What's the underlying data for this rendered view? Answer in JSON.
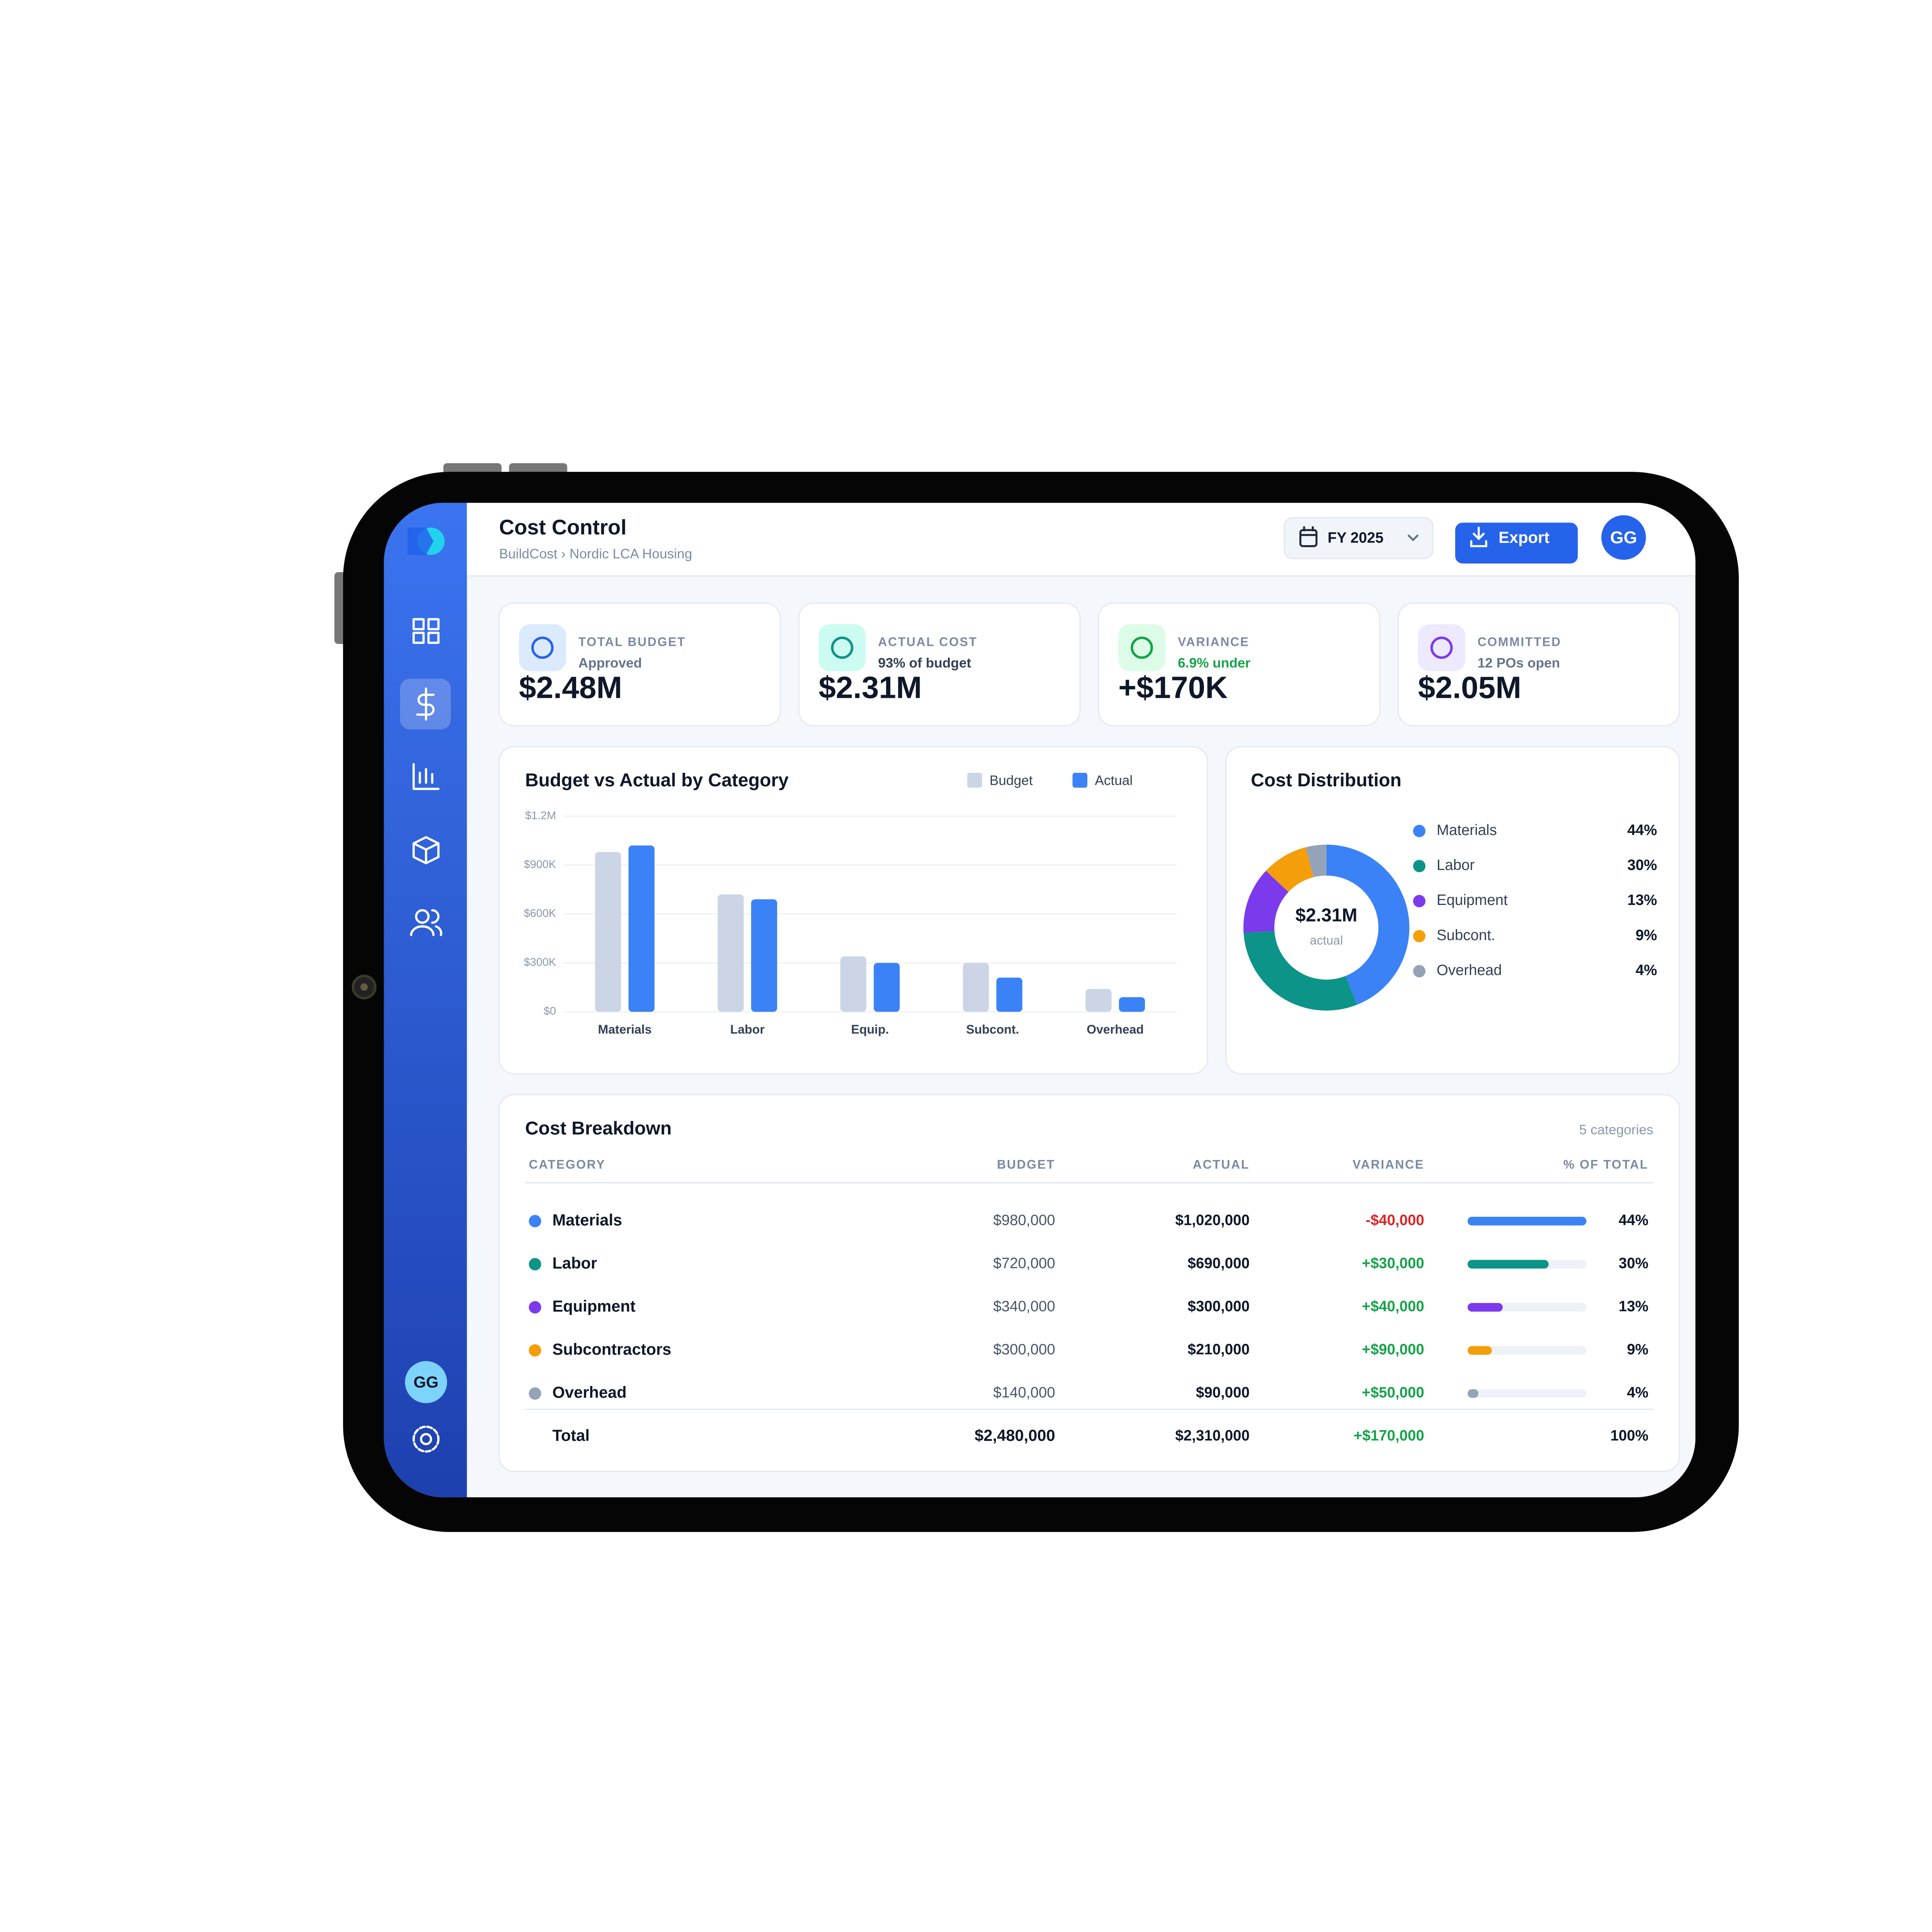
{
  "header": {
    "title": "Cost Control",
    "breadcrumb": "BuildCost › Nordic LCA Housing",
    "period": "FY 2025",
    "export": "Export",
    "avatar": "GG"
  },
  "sidebar": {
    "avatar": "GG"
  },
  "kpis": [
    {
      "label": "TOTAL BUDGET",
      "note": "Approved",
      "value": "$2.48M"
    },
    {
      "label": "ACTUAL COST",
      "note": "93% of budget",
      "value": "$2.31M"
    },
    {
      "label": "VARIANCE",
      "note": "6.9% under",
      "value": "+$170K"
    },
    {
      "label": "COMMITTED",
      "note": "12 POs open",
      "value": "$2.05M"
    }
  ],
  "chart_data": [
    {
      "type": "bar",
      "title": "Budget vs Actual by Category",
      "categories": [
        "Materials",
        "Labor",
        "Equip.",
        "Subcont.",
        "Overhead"
      ],
      "series": [
        {
          "name": "Budget",
          "color": "#cbd5e6",
          "values": [
            980000,
            720000,
            340000,
            300000,
            140000
          ]
        },
        {
          "name": "Actual",
          "color": "#3b82f6",
          "values": [
            1020000,
            690000,
            300000,
            210000,
            90000
          ]
        }
      ],
      "ylim": [
        0,
        1200000
      ],
      "yticks": [
        {
          "value": 0,
          "label": "$0"
        },
        {
          "value": 300000,
          "label": "$300K"
        },
        {
          "value": 600000,
          "label": "$600K"
        },
        {
          "value": 900000,
          "label": "$900K"
        },
        {
          "value": 1200000,
          "label": "$1.2M"
        }
      ],
      "grid": true,
      "legend": "top-right"
    },
    {
      "type": "donut",
      "title": "Cost Distribution",
      "categories": [
        "Materials",
        "Labor",
        "Equipment",
        "Subcont.",
        "Overhead"
      ],
      "values": [
        44,
        30,
        13,
        9,
        4
      ],
      "value_labels": [
        "44%",
        "30%",
        "13%",
        "9%",
        "4%"
      ],
      "colors": [
        "#3b82f6",
        "#0d9488",
        "#7c3aed",
        "#f59e0b",
        "#94a3b8"
      ],
      "center_value": "$2.31M",
      "center_label": "actual",
      "legend": "right"
    }
  ],
  "table": {
    "title": "Cost Breakdown",
    "note": "5 categories",
    "columns": [
      "CATEGORY",
      "BUDGET",
      "ACTUAL",
      "VARIANCE",
      "% OF TOTAL"
    ],
    "rows": [
      [
        "Materials",
        "$980,000",
        "$1,020,000",
        "-$40,000",
        "44%"
      ],
      [
        "Labor",
        "$720,000",
        "$690,000",
        "+$30,000",
        "30%"
      ],
      [
        "Equipment",
        "$340,000",
        "$300,000",
        "+$40,000",
        "13%"
      ],
      [
        "Subcontractors",
        "$300,000",
        "$210,000",
        "+$90,000",
        "9%"
      ],
      [
        "Overhead",
        "$140,000",
        "$90,000",
        "+$50,000",
        "4%"
      ]
    ],
    "total": [
      "Total",
      "$2,480,000",
      "$2,310,000",
      "+$170,000",
      "100%"
    ]
  }
}
